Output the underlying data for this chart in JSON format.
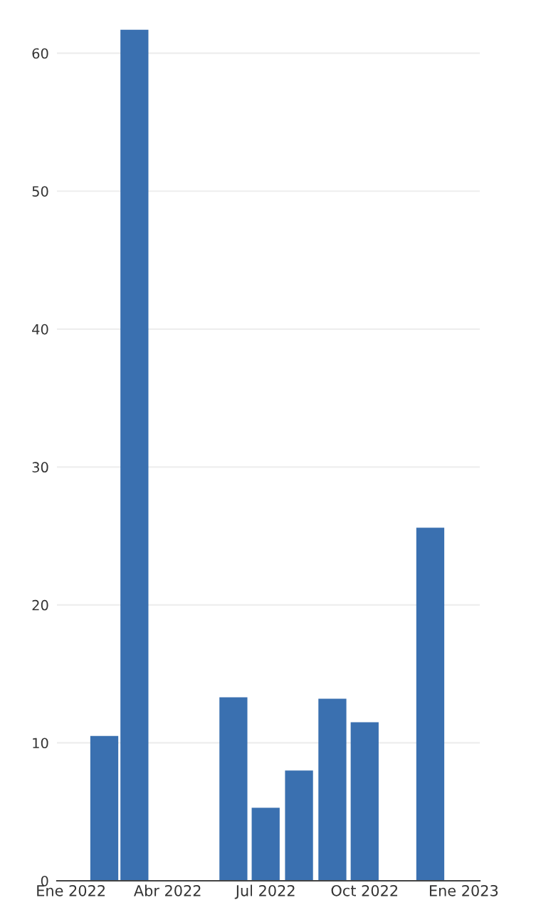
{
  "chart_data": {
    "type": "bar",
    "color": "#3a70b0",
    "x": [
      "2022-02",
      "2022-03",
      "2022-06",
      "2022-07",
      "2022-08",
      "2022-09",
      "2022-10",
      "2022-12"
    ],
    "values": [
      10.5,
      61.7,
      13.3,
      5.3,
      8.0,
      13.2,
      11.5,
      25.6
    ],
    "xlim": [
      "2021-12-19",
      "2023-01-16"
    ],
    "xticks": [
      {
        "value": "2022-01",
        "label": "Ene 2022"
      },
      {
        "value": "2022-04",
        "label": "Abr 2022"
      },
      {
        "value": "2022-07",
        "label": "Jul 2022"
      },
      {
        "value": "2022-10",
        "label": "Oct 2022"
      },
      {
        "value": "2023-01",
        "label": "Ene 2023"
      }
    ],
    "ylim": [
      0,
      62
    ],
    "yticks": [
      0,
      10,
      20,
      30,
      40,
      50,
      60
    ],
    "grid": "y"
  }
}
